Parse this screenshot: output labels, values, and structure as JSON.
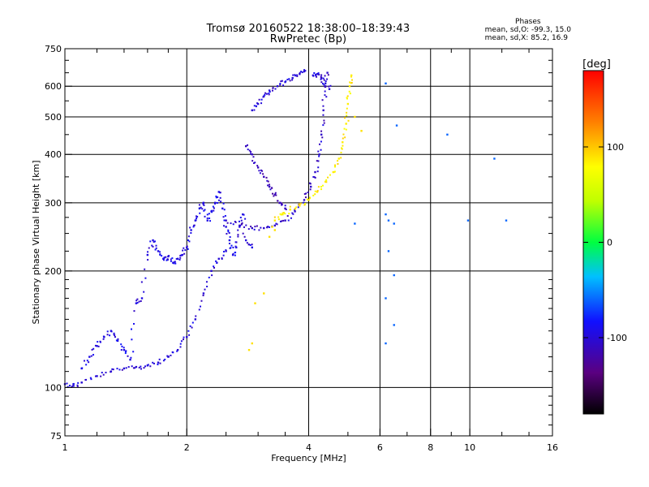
{
  "title": {
    "line1": "Tromsø 20160522 18:38:00–18:39:43",
    "line2": "RwPretec (Bp)"
  },
  "phases_box": {
    "heading": "Phases",
    "line_o": "mean, sd,O: -99.3, 15.0",
    "line_x": "mean, sd,X:  85.2, 16.9"
  },
  "colorbar": {
    "unit_label": "[deg]",
    "ticks": [
      "100",
      "0",
      "-100"
    ],
    "tick_values": [
      100,
      0,
      -100
    ],
    "range": [
      -180,
      180
    ]
  },
  "chart_data": {
    "type": "scatter",
    "xlabel": "Frequency [MHz]",
    "ylabel": "Stationary phase Virtual Height [km]",
    "x_scale": "log",
    "y_scale": "log",
    "xlim": [
      1,
      16
    ],
    "ylim": [
      75,
      750
    ],
    "x_ticks": [
      1,
      2,
      4,
      6,
      8,
      10,
      16
    ],
    "y_ticks": [
      75,
      100,
      200,
      300,
      400,
      500,
      600,
      750
    ],
    "grid_x": [
      2,
      4,
      6,
      8,
      10
    ],
    "grid_y": [
      100,
      200,
      300,
      400,
      500,
      600
    ],
    "grid": true,
    "colorscale": "rainbow phase [deg]",
    "traces": [
      {
        "name": "O low trace",
        "phase": -100,
        "points": [
          [
            1.0,
            102
          ],
          [
            1.05,
            101
          ],
          [
            1.1,
            103
          ],
          [
            1.2,
            107
          ],
          [
            1.3,
            110
          ],
          [
            1.4,
            112
          ],
          [
            1.5,
            113
          ],
          [
            1.6,
            114
          ],
          [
            1.7,
            116
          ],
          [
            1.8,
            120
          ],
          [
            1.9,
            125
          ],
          [
            2.0,
            135
          ],
          [
            2.1,
            150
          ],
          [
            2.2,
            175
          ],
          [
            2.3,
            200
          ],
          [
            2.4,
            215
          ],
          [
            2.5,
            225
          ]
        ]
      },
      {
        "name": "O scatter",
        "phase": -95,
        "points": [
          [
            1.1,
            112
          ],
          [
            1.15,
            120
          ],
          [
            1.2,
            128
          ],
          [
            1.25,
            135
          ],
          [
            1.3,
            140
          ],
          [
            1.35,
            132
          ],
          [
            1.4,
            125
          ],
          [
            1.45,
            118
          ],
          [
            1.5,
            165
          ],
          [
            1.55,
            170
          ],
          [
            1.6,
            220
          ],
          [
            1.65,
            240
          ],
          [
            1.7,
            225
          ],
          [
            1.75,
            215
          ],
          [
            1.8,
            218
          ],
          [
            1.85,
            210
          ],
          [
            1.9,
            215
          ],
          [
            1.95,
            220
          ],
          [
            2.0,
            230
          ],
          [
            2.05,
            255
          ],
          [
            2.1,
            270
          ],
          [
            2.15,
            290
          ],
          [
            2.2,
            300
          ],
          [
            2.25,
            270
          ],
          [
            2.3,
            285
          ],
          [
            2.35,
            300
          ],
          [
            2.4,
            320
          ],
          [
            2.45,
            290
          ],
          [
            2.5,
            260
          ],
          [
            2.55,
            240
          ],
          [
            2.6,
            220
          ],
          [
            2.65,
            230
          ],
          [
            2.7,
            260
          ],
          [
            2.75,
            280
          ],
          [
            2.8,
            240
          ],
          [
            2.9,
            230
          ]
        ]
      },
      {
        "name": "O F-trace",
        "phase": -105,
        "points": [
          [
            2.5,
            270
          ],
          [
            2.7,
            262
          ],
          [
            2.9,
            258
          ],
          [
            3.1,
            258
          ],
          [
            3.3,
            262
          ],
          [
            3.5,
            270
          ],
          [
            3.7,
            285
          ],
          [
            3.9,
            305
          ],
          [
            4.05,
            330
          ],
          [
            4.15,
            360
          ],
          [
            4.25,
            400
          ],
          [
            4.3,
            450
          ],
          [
            4.35,
            520
          ],
          [
            4.4,
            600
          ],
          [
            4.45,
            650
          ]
        ]
      },
      {
        "name": "O oblique",
        "phase": -110,
        "points": [
          [
            2.8,
            420
          ],
          [
            2.9,
            400
          ],
          [
            3.0,
            370
          ],
          [
            3.1,
            350
          ],
          [
            3.2,
            330
          ],
          [
            3.3,
            315
          ],
          [
            3.4,
            300
          ],
          [
            3.5,
            290
          ]
        ]
      },
      {
        "name": "O upper",
        "phase": -100,
        "points": [
          [
            2.9,
            520
          ],
          [
            3.0,
            540
          ],
          [
            3.1,
            565
          ],
          [
            3.2,
            585
          ],
          [
            3.35,
            600
          ],
          [
            3.5,
            615
          ],
          [
            3.65,
            630
          ],
          [
            3.8,
            645
          ],
          [
            3.9,
            655
          ]
        ]
      },
      {
        "name": "O top",
        "phase": -100,
        "points": [
          [
            4.1,
            640
          ],
          [
            4.2,
            645
          ],
          [
            4.3,
            630
          ],
          [
            4.4,
            610
          ],
          [
            4.5,
            590
          ]
        ]
      },
      {
        "name": "X trace",
        "phase": 85,
        "points": [
          [
            3.3,
            270
          ],
          [
            3.45,
            280
          ],
          [
            3.6,
            288
          ],
          [
            3.8,
            295
          ],
          [
            4.0,
            305
          ],
          [
            4.2,
            320
          ],
          [
            4.4,
            340
          ],
          [
            4.6,
            360
          ],
          [
            4.75,
            390
          ],
          [
            4.85,
            430
          ],
          [
            4.95,
            480
          ],
          [
            5.0,
            540
          ],
          [
            5.05,
            600
          ],
          [
            5.1,
            640
          ]
        ]
      },
      {
        "name": "X scatter",
        "phase": 90,
        "points": [
          [
            2.85,
            125
          ],
          [
            2.9,
            130
          ],
          [
            2.95,
            165
          ],
          [
            3.1,
            175
          ],
          [
            3.2,
            245
          ],
          [
            3.25,
            260
          ],
          [
            3.3,
            255
          ],
          [
            5.4,
            460
          ],
          [
            5.2,
            500
          ]
        ]
      },
      {
        "name": "isolated",
        "phase": -60,
        "points": [
          [
            6.2,
            610
          ],
          [
            6.2,
            280
          ],
          [
            6.3,
            270
          ],
          [
            6.5,
            265
          ],
          [
            6.5,
            195
          ],
          [
            6.5,
            145
          ],
          [
            6.6,
            475
          ],
          [
            8.8,
            450
          ],
          [
            9.9,
            270
          ],
          [
            11.5,
            390
          ],
          [
            12.3,
            270
          ],
          [
            6.2,
            130
          ],
          [
            6.2,
            170
          ],
          [
            5.2,
            265
          ],
          [
            6.3,
            225
          ]
        ]
      }
    ]
  }
}
